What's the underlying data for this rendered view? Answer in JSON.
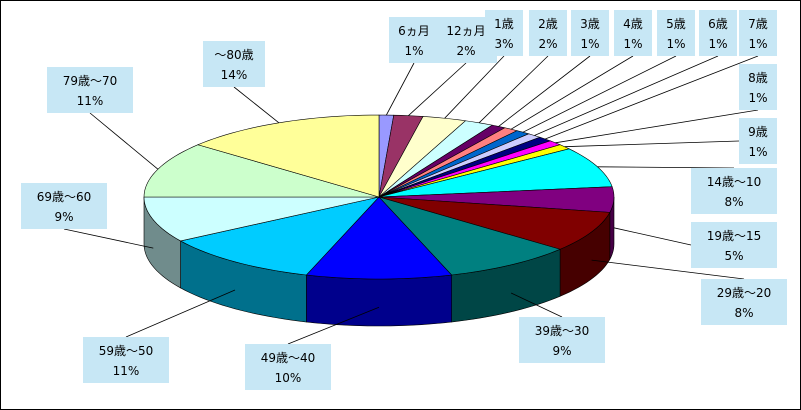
{
  "chart_data": {
    "type": "pie",
    "categories": [
      "6ヵ月",
      "12ヵ月",
      "1歳",
      "2歳",
      "3歳",
      "4歳",
      "5歳",
      "6歳",
      "7歳",
      "8歳",
      "9歳",
      "14歳～10",
      "19歳～15",
      "29歳～20",
      "39歳～30",
      "49歳～40",
      "59歳～50",
      "69歳～60",
      "79歳～70",
      "～80歳"
    ],
    "values": [
      1,
      2,
      3,
      2,
      1,
      1,
      1,
      1,
      1,
      1,
      1,
      8,
      5,
      8,
      9,
      10,
      11,
      9,
      11,
      14
    ],
    "value_labels": [
      "1%",
      "2%",
      "3%",
      "2%",
      "1%",
      "1%",
      "1%",
      "1%",
      "1%",
      "1%",
      "1%",
      "8%",
      "5%",
      "8%",
      "9%",
      "10%",
      "11%",
      "9%",
      "11%",
      "14%"
    ],
    "colors": [
      "#9999ff",
      "#993366",
      "#ffffcc",
      "#ccffff",
      "#660066",
      "#ff8080",
      "#0066cc",
      "#ccccff",
      "#000080",
      "#ff00ff",
      "#ffff00",
      "#00ffff",
      "#800080",
      "#800000",
      "#008080",
      "#0000ff",
      "#00ccff",
      "#ccffff",
      "#ccffcc",
      "#ffff99"
    ],
    "legend": "none",
    "style": "3d"
  }
}
